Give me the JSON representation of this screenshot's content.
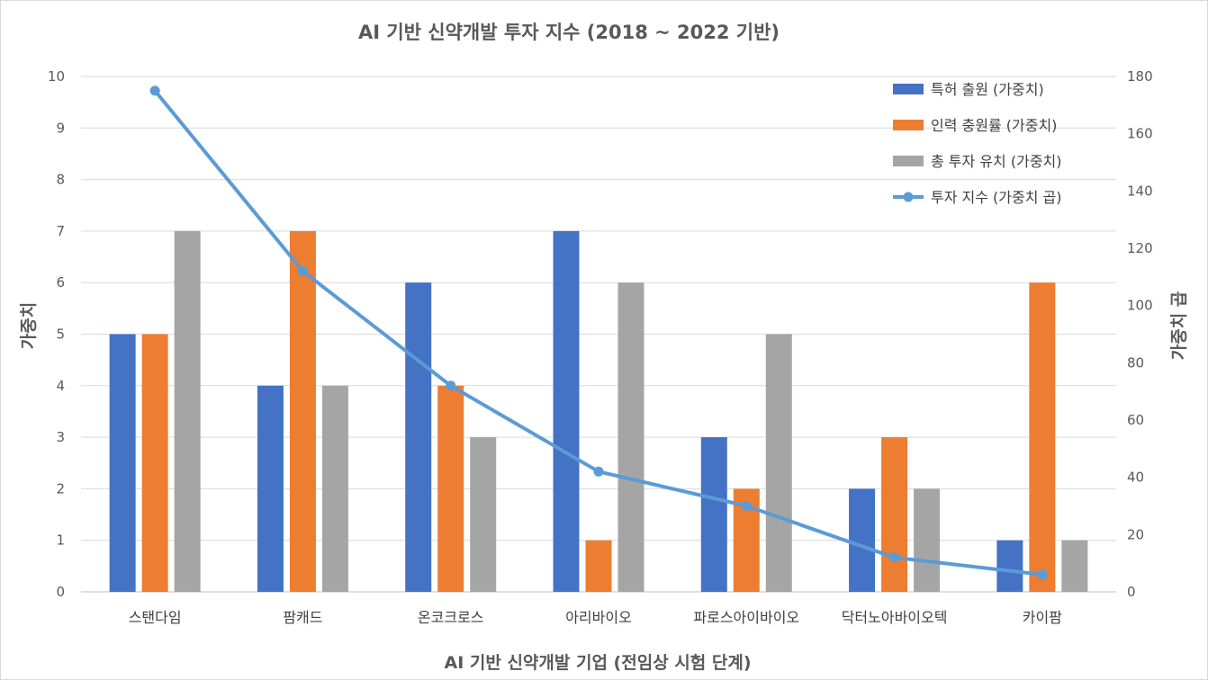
{
  "chart_data": {
    "type": "bar",
    "title": "AI 기반 신약개발 투자 지수 (2018 ~ 2022 기반)",
    "xlabel": "AI 기반 신약개발 기업 (전임상 시험 단계)",
    "ylabel": "가중치",
    "y2label": "가중치 곱",
    "ylim": [
      0,
      10
    ],
    "y2lim": [
      0,
      180
    ],
    "yticks": [
      "0",
      "1",
      "2",
      "3",
      "4",
      "5",
      "6",
      "7",
      "8",
      "9",
      "10"
    ],
    "y2ticks": [
      "0",
      "20",
      "40",
      "60",
      "80",
      "100",
      "120",
      "140",
      "160",
      "180"
    ],
    "grid": true,
    "legend_position": "top-right",
    "categories": [
      "스탠다임",
      "팜캐드",
      "온코크로스",
      "아리바이오",
      "파로스아이바이오",
      "닥터노아바이오텍",
      "카이팜"
    ],
    "series": [
      {
        "name": "특허 출원 (가중치)",
        "type": "bar",
        "color": "#4472C4",
        "values": [
          5,
          4,
          6,
          7,
          3,
          2,
          1
        ]
      },
      {
        "name": "인력 충원률 (가중치)",
        "type": "bar",
        "color": "#ED7D31",
        "values": [
          5,
          7,
          4,
          1,
          2,
          3,
          6
        ]
      },
      {
        "name": "총 투자 유치 (가중치)",
        "type": "bar",
        "color": "#A5A5A5",
        "values": [
          7,
          4,
          3,
          6,
          5,
          2,
          1
        ]
      },
      {
        "name": "투자 지수 (가중치 곱)",
        "type": "line",
        "axis": "secondary",
        "color": "#5B9BD5",
        "values": [
          175,
          112,
          72,
          42,
          30,
          12,
          6
        ]
      }
    ]
  }
}
